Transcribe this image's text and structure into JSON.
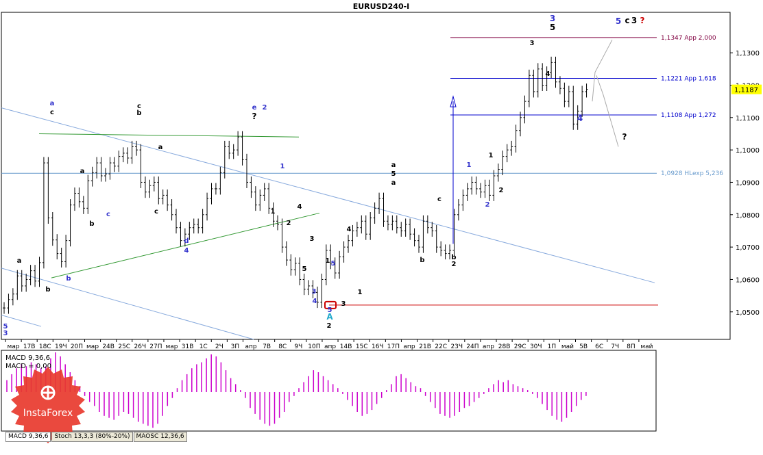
{
  "chart_data": {
    "type": "line",
    "title": "EURUSD240-I",
    "price_axis": {
      "ticks": [
        "1,1300",
        "1,1200",
        "1,1100",
        "1,1000",
        "1,0900",
        "1,0800",
        "1,0700",
        "1,0600",
        "1,0500"
      ],
      "current_price": "1,1187",
      "range": [
        1.0415,
        1.1425
      ]
    },
    "time_axis": {
      "ticks": [
        "мар",
        "17В",
        "18С",
        "19Ч",
        "20П",
        "мар",
        "24В",
        "25С",
        "26Ч",
        "27П",
        "мар",
        "31В",
        "1С",
        "2Ч",
        "3П",
        "апр",
        "7В",
        "8С",
        "9Ч",
        "10П",
        "апр",
        "14В",
        "15С",
        "16Ч",
        "17П",
        "апр",
        "21В",
        "22С",
        "23Ч",
        "24П",
        "апр",
        "28В",
        "29С",
        "30Ч",
        "1П",
        "май",
        "5В",
        "6С",
        "7Ч",
        "8П",
        "май"
      ]
    },
    "price_series": [
      1.0512,
      1.0538,
      1.0555,
      1.0611,
      1.058,
      1.06,
      1.0627,
      1.0595,
      1.0652,
      1.096,
      1.079,
      1.0722,
      1.068,
      1.0655,
      1.072,
      1.083,
      1.0866,
      1.084,
      1.082,
      1.0905,
      1.093,
      1.096,
      1.092,
      1.0926,
      1.096,
      1.095,
      1.098,
      1.099,
      1.0975,
      1.101,
      1.1,
      1.09,
      1.087,
      1.089,
      1.09,
      1.085,
      1.086,
      1.083,
      1.08,
      1.076,
      1.072,
      1.074,
      1.076,
      1.077,
      1.076,
      1.08,
      1.085,
      1.088,
      1.088,
      1.093,
      1.101,
      1.099,
      1.1,
      1.104,
      1.097,
      1.09,
      1.087,
      1.083,
      1.086,
      1.088,
      1.082,
      1.078,
      1.077,
      1.07,
      1.066,
      1.063,
      1.065,
      1.06,
      1.057,
      1.058,
      1.056,
      1.053,
      1.06,
      1.069,
      1.065,
      1.062,
      1.067,
      1.07,
      1.072,
      1.075,
      1.076,
      1.078,
      1.074,
      1.079,
      1.082,
      1.085,
      1.078,
      1.077,
      1.078,
      1.076,
      1.075,
      1.077,
      1.074,
      1.072,
      1.07,
      1.078,
      1.076,
      1.075,
      1.07,
      1.069,
      1.068,
      1.069,
      1.08,
      1.083,
      1.086,
      1.088,
      1.09,
      1.088,
      1.087,
      1.089,
      1.086,
      1.092,
      1.094,
      1.098,
      1.1,
      1.101,
      1.106,
      1.11,
      1.115,
      1.123,
      1.118,
      1.125,
      1.12,
      1.124,
      1.127,
      1.121,
      1.119,
      1.115,
      1.118,
      1.108,
      1.112,
      1.118,
      1.1187
    ],
    "indicator": {
      "name": "MACD 9,36,6",
      "macd_label": "MACD 9,36,6",
      "signal_label": "MACD = 0,00",
      "histogram": [
        6,
        9,
        12,
        14,
        13,
        15,
        14,
        12,
        13,
        17,
        20,
        18,
        14,
        10,
        6,
        3,
        -2,
        -5,
        -7,
        -10,
        -12,
        -13,
        -14,
        -12,
        -10,
        -11,
        -13,
        -15,
        -16,
        -17,
        -18,
        -16,
        -12,
        -7,
        -3,
        2,
        6,
        9,
        12,
        14,
        15,
        17,
        19,
        18,
        15,
        11,
        7,
        4,
        1,
        -3,
        -8,
        -11,
        -14,
        -16,
        -17,
        -16,
        -13,
        -10,
        -5,
        -2,
        2,
        5,
        8,
        11,
        10,
        8,
        6,
        4,
        2,
        -1,
        -4,
        -7,
        -10,
        -12,
        -11,
        -9,
        -6,
        -3,
        1,
        4,
        8,
        9,
        7,
        5,
        3,
        2,
        -2,
        -5,
        -8,
        -11,
        -12,
        -13,
        -12,
        -10,
        -8,
        -7,
        -5,
        -3,
        -1,
        2,
        4,
        6,
        5,
        6,
        4,
        3,
        2,
        1,
        -1,
        -3,
        -6,
        -9,
        -12,
        -14,
        -15,
        -13,
        -10,
        -7,
        -4,
        -2
      ]
    },
    "levels": [
      {
        "label": "1,1347 App 2,000",
        "price": 1.1347,
        "color": "#800040"
      },
      {
        "label": "1,1221 App 1,618",
        "price": 1.1221,
        "color": "#0000cc"
      },
      {
        "label": "1,1108 App 1,272",
        "price": 1.1108,
        "color": "#0000cc"
      },
      {
        "label": "1,0928 HLexp 5,236",
        "price": 1.0928,
        "color": "#6699cc"
      }
    ],
    "wave_labels": [
      {
        "text": "5",
        "color": "#3333cc"
      },
      {
        "text": "3",
        "color": "#3333cc"
      },
      {
        "text": "a",
        "color": "#000000"
      },
      {
        "text": "b",
        "color": "#000000"
      },
      {
        "text": "a",
        "color": "#3333cc"
      },
      {
        "text": "c",
        "color": "#000000"
      },
      {
        "text": "b",
        "color": "#3333cc"
      },
      {
        "text": "a",
        "color": "#000000"
      },
      {
        "text": "b",
        "color": "#000000"
      },
      {
        "text": "c",
        "color": "#3333cc"
      },
      {
        "text": "c",
        "color": "#000000"
      },
      {
        "text": "b",
        "color": "#000000"
      },
      {
        "text": "a",
        "color": "#000000"
      },
      {
        "text": "c",
        "color": "#000000"
      },
      {
        "text": "d",
        "color": "#3333cc"
      },
      {
        "text": "4",
        "color": "#3333cc"
      },
      {
        "text": "e",
        "color": "#3333cc"
      },
      {
        "text": "?",
        "color": "#000000"
      },
      {
        "text": "2",
        "color": "#3333cc"
      },
      {
        "text": "1",
        "color": "#3333cc"
      },
      {
        "text": "1",
        "color": "#000000"
      },
      {
        "text": "2",
        "color": "#000000"
      },
      {
        "text": "4",
        "color": "#000000"
      },
      {
        "text": "3",
        "color": "#000000"
      },
      {
        "text": "5",
        "color": "#000000"
      },
      {
        "text": "3",
        "color": "#3333cc"
      },
      {
        "text": "4",
        "color": "#3333cc"
      },
      {
        "text": "1",
        "color": "#000000"
      },
      {
        "text": "5",
        "color": "#3333cc"
      },
      {
        "text": "5",
        "color": "#3333cc"
      },
      {
        "text": "A",
        "color": "#22aacc"
      },
      {
        "text": "2",
        "color": "#000000"
      },
      {
        "text": "3",
        "color": "#000000"
      },
      {
        "text": "4",
        "color": "#000000"
      },
      {
        "text": "1",
        "color": "#000000"
      },
      {
        "text": "a",
        "color": "#000000"
      },
      {
        "text": "5",
        "color": "#000000"
      },
      {
        "text": "a",
        "color": "#000000"
      },
      {
        "text": "b",
        "color": "#000000"
      },
      {
        "text": "c",
        "color": "#000000"
      },
      {
        "text": "b",
        "color": "#000000"
      },
      {
        "text": "2",
        "color": "#000000"
      },
      {
        "text": "1",
        "color": "#3333cc"
      },
      {
        "text": "2",
        "color": "#3333cc"
      },
      {
        "text": "1",
        "color": "#000000"
      },
      {
        "text": "2",
        "color": "#000000"
      },
      {
        "text": "3",
        "color": "#000000"
      },
      {
        "text": "4",
        "color": "#000000"
      },
      {
        "text": "3",
        "color": "#3333cc"
      },
      {
        "text": "5",
        "color": "#000000"
      },
      {
        "text": "4",
        "color": "#3333cc"
      },
      {
        "text": "5",
        "color": "#3333cc"
      },
      {
        "text": "c",
        "color": "#000000"
      },
      {
        "text": "3",
        "color": "#000000"
      },
      {
        "text": "?",
        "color": "#cc0000"
      },
      {
        "text": "?",
        "color": "#000000"
      }
    ],
    "colors": {
      "bars": "#000000",
      "histogram_positive": "#cc00cc",
      "histogram_negative": "#cc00cc",
      "current_price_bg": "#ffff00",
      "support_line": "#cc0000",
      "trend_green": "#339933",
      "channel_blue": "#88aadd"
    },
    "grid": false
  },
  "tabs": [
    {
      "label": "MACD 9,36,6"
    },
    {
      "label": "Stoch 13,3,3 (80%-20%)"
    },
    {
      "label": "MAOSC 12,36,6"
    }
  ],
  "logo": {
    "text": "InstaForex",
    "icon": "instaforex-logo-icon"
  }
}
